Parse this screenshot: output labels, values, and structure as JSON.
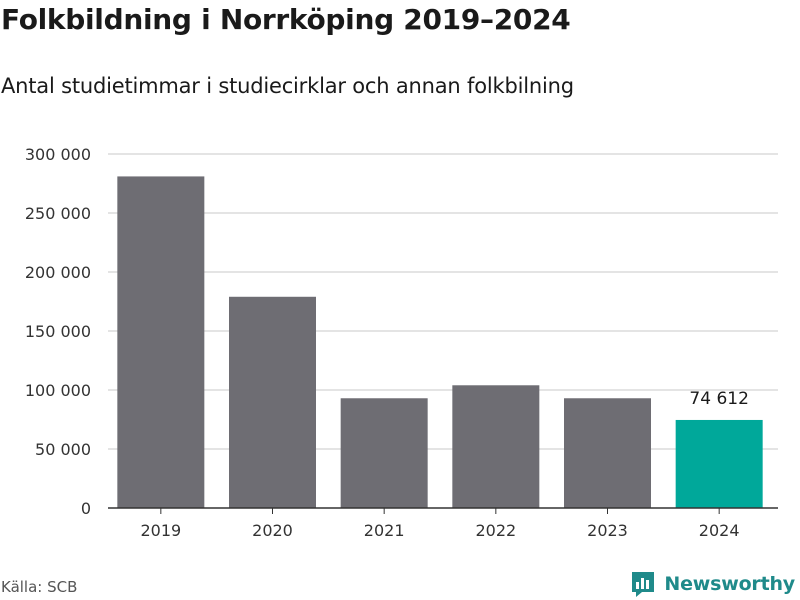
{
  "title": "Folkbildning i Norrköping 2019–2024",
  "subtitle": "Antal studietimmar i studiecirklar och annan folkbilning",
  "source": "Källa: SCB",
  "brand": {
    "name": "Newsworthy",
    "icon": "newsworthy-logo-icon",
    "color": "#1f8a8a"
  },
  "colors": {
    "bar": "#6e6d73",
    "highlight": "#00a89a",
    "grid": "#dcdcdc",
    "axis": "#333333"
  },
  "chart_data": {
    "type": "bar",
    "categories": [
      "2019",
      "2020",
      "2021",
      "2022",
      "2023",
      "2024"
    ],
    "values": [
      281000,
      179000,
      93000,
      104000,
      93000,
      74612
    ],
    "highlight_index": 5,
    "data_labels": [
      {
        "index": 5,
        "text": "74 612"
      }
    ],
    "ylim": [
      0,
      300000
    ],
    "yticks": [
      0,
      50000,
      100000,
      150000,
      200000,
      250000,
      300000
    ],
    "ytick_labels": [
      "0",
      "50 000",
      "100 000",
      "150 000",
      "200 000",
      "250 000",
      "300 000"
    ],
    "grid": true,
    "xlabel": "",
    "ylabel": ""
  }
}
